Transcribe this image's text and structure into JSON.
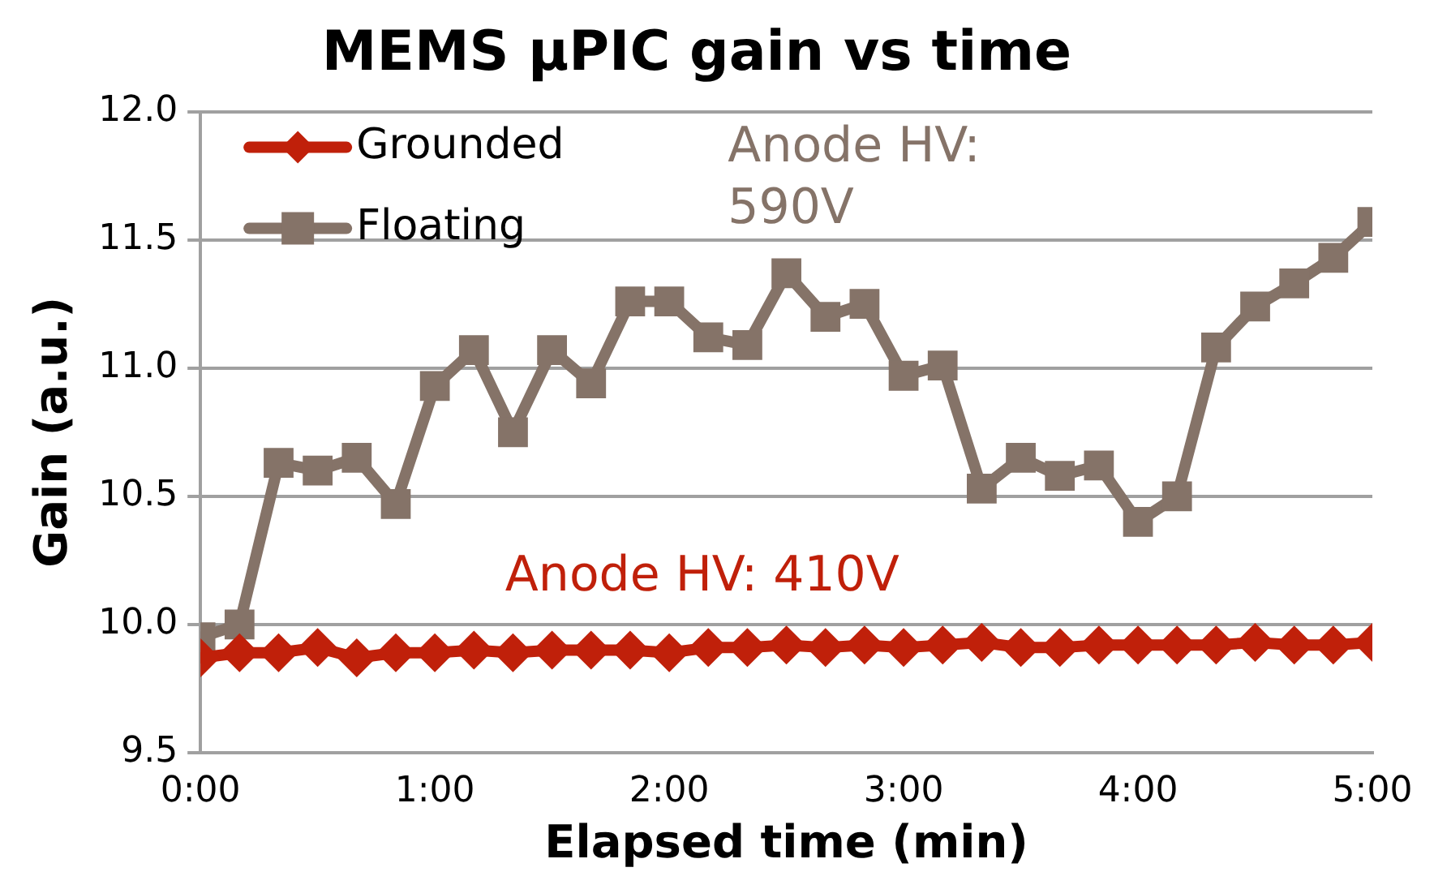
{
  "chart_data": {
    "type": "line",
    "title": "MEMS μPIC gain vs time",
    "xlabel": "Elapsed time (min)",
    "ylabel": "Gain (a.u.)",
    "x": [
      0,
      10,
      20,
      30,
      40,
      50,
      60,
      70,
      80,
      90,
      100,
      110,
      120,
      130,
      140,
      150,
      160,
      170,
      180,
      190,
      200,
      210,
      220,
      230,
      240,
      250,
      260,
      270,
      280,
      290,
      300
    ],
    "series": [
      {
        "name": "Grounded",
        "color": "#c0200a",
        "marker": "diamond",
        "values": [
          9.87,
          9.89,
          9.89,
          9.91,
          9.87,
          9.89,
          9.89,
          9.9,
          9.89,
          9.9,
          9.9,
          9.9,
          9.89,
          9.91,
          9.91,
          9.92,
          9.91,
          9.92,
          9.91,
          9.92,
          9.93,
          9.91,
          9.91,
          9.92,
          9.92,
          9.92,
          9.92,
          9.93,
          9.92,
          9.92,
          9.93
        ]
      },
      {
        "name": "Floating",
        "color": "#857368",
        "marker": "square",
        "values": [
          9.95,
          10.0,
          10.63,
          10.6,
          10.65,
          10.47,
          10.93,
          11.07,
          10.75,
          11.07,
          10.94,
          11.26,
          11.26,
          11.12,
          11.09,
          11.37,
          11.2,
          11.25,
          10.97,
          11.01,
          10.53,
          10.65,
          10.58,
          10.62,
          10.4,
          10.5,
          11.08,
          11.24,
          11.33,
          11.43,
          11.57
        ]
      }
    ],
    "xlim": [
      0,
      300
    ],
    "xticks": [
      {
        "value": 0,
        "label": "0:00"
      },
      {
        "value": 60,
        "label": "1:00"
      },
      {
        "value": 120,
        "label": "2:00"
      },
      {
        "value": 180,
        "label": "3:00"
      },
      {
        "value": 240,
        "label": "4:00"
      },
      {
        "value": 300,
        "label": "5:00"
      }
    ],
    "ylim": [
      9.5,
      12.0
    ],
    "yticks": [
      {
        "value": 9.5,
        "label": "9.5"
      },
      {
        "value": 10,
        "label": "10.0"
      },
      {
        "value": 10.5,
        "label": "10.5"
      },
      {
        "value": 11,
        "label": "11.0"
      },
      {
        "value": 11.5,
        "label": "11.5"
      },
      {
        "value": 12,
        "label": "12.0"
      }
    ],
    "grid": "y",
    "legend": "top left",
    "line_style": "solid",
    "annotations": [
      "Anode HV: 410V",
      "Anode HV: 590V"
    ]
  }
}
